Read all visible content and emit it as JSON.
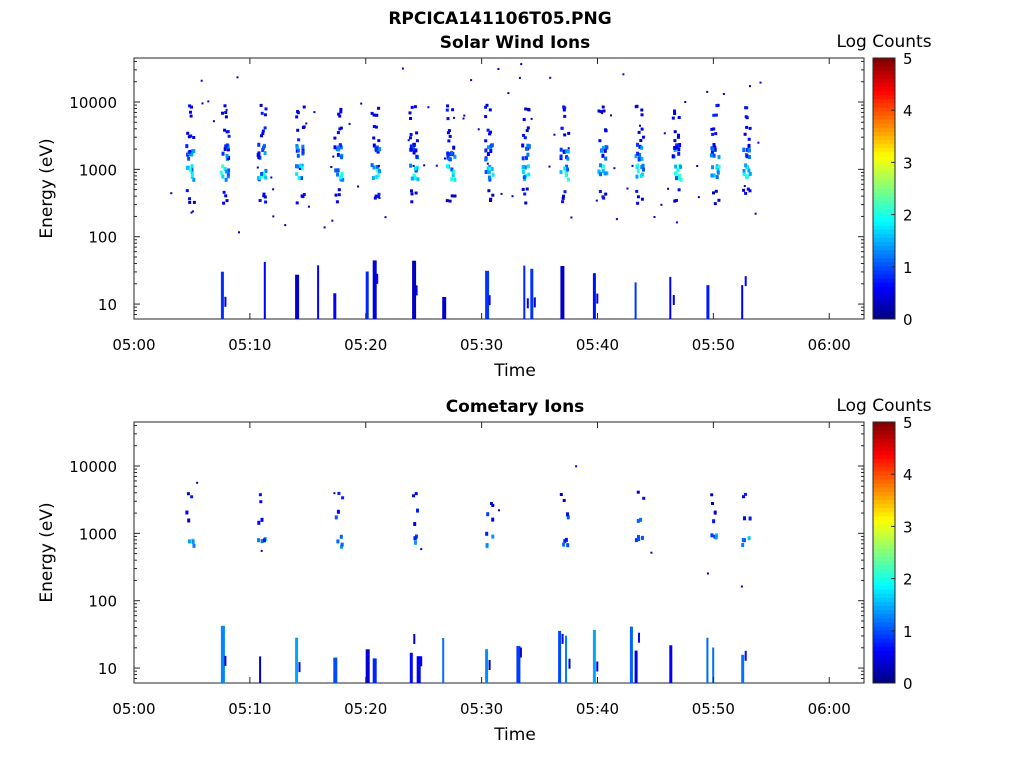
{
  "figure_title": "RPCICA141106T05.PNG",
  "chart_data": [
    {
      "type": "heatmap",
      "title": "Solar Wind Ions",
      "xlabel": "Time",
      "ylabel": "Energy (eV)",
      "y_scale": "log",
      "xlim": [
        "05:00",
        "06:03"
      ],
      "ylim": [
        6,
        45000
      ],
      "x_ticks": [
        "05:00",
        "05:10",
        "05:20",
        "05:30",
        "05:40",
        "05:50",
        "06:00"
      ],
      "y_ticks": [
        "10",
        "100",
        "1000",
        "10000"
      ],
      "colorbar": {
        "label": "Log Counts",
        "range": [
          0,
          5
        ],
        "ticks": [
          "0",
          "1",
          "2",
          "3",
          "4",
          "5"
        ]
      },
      "grid": false,
      "sweep_times_min": [
        4.6,
        7.6,
        10.8,
        14.1,
        17.4,
        20.6,
        23.9,
        27.1,
        30.4,
        33.6,
        36.9,
        40.2,
        43.4,
        46.6,
        49.9,
        52.6
      ],
      "low_energy_column_times_min": [
        7.5,
        11.2,
        13.9,
        15.8,
        17.2,
        20.0,
        20.6,
        24.0,
        26.6,
        30.3,
        33.6,
        34.2,
        36.8,
        39.6,
        43.2,
        46.2,
        49.4,
        52.4
      ],
      "peak_energy_eV": 900,
      "peak_log_counts": 2.2
    },
    {
      "type": "heatmap",
      "title": "Cometary Ions",
      "xlabel": "Time",
      "ylabel": "Energy (eV)",
      "y_scale": "log",
      "xlim": [
        "05:00",
        "06:03"
      ],
      "ylim": [
        6,
        45000
      ],
      "x_ticks": [
        "05:00",
        "05:10",
        "05:20",
        "05:30",
        "05:40",
        "05:50",
        "06:00"
      ],
      "y_ticks": [
        "10",
        "100",
        "1000",
        "10000"
      ],
      "colorbar": {
        "label": "Log Counts",
        "range": [
          0,
          5
        ],
        "ticks": [
          "0",
          "1",
          "2",
          "3",
          "4",
          "5"
        ]
      },
      "grid": false,
      "sweep_times_min": [
        4.6,
        10.8,
        17.4,
        23.9,
        30.4,
        36.9,
        43.4,
        49.9,
        52.6
      ],
      "low_energy_column_times_min": [
        7.5,
        10.8,
        13.9,
        17.2,
        20.0,
        20.6,
        23.8,
        24.4,
        26.6,
        30.3,
        33.0,
        36.6,
        37.2,
        39.6,
        42.8,
        43.2,
        46.2,
        49.4,
        49.9,
        52.4
      ],
      "peak_energy_eV": 800,
      "peak_log_counts": 1.6
    }
  ]
}
